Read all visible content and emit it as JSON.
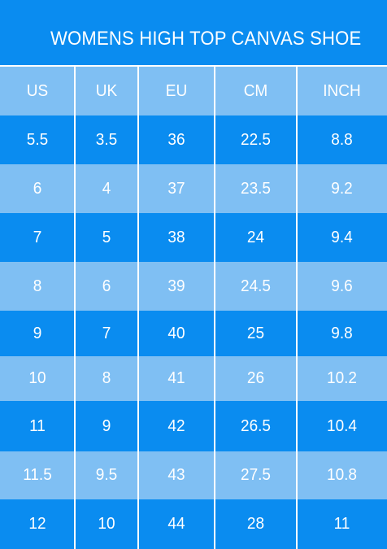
{
  "title": "WOMENS HIGH TOP CANVAS SHOE",
  "colors": {
    "dark_row": "#0a8cf0",
    "light_row": "#7fbff3",
    "text": "#ffffff"
  },
  "headers": [
    "US",
    "UK",
    "EU",
    "CM",
    "INCH"
  ],
  "rows": [
    [
      "5.5",
      "3.5",
      "36",
      "22.5",
      "8.8"
    ],
    [
      "6",
      "4",
      "37",
      "23.5",
      "9.2"
    ],
    [
      "7",
      "5",
      "38",
      "24",
      "9.4"
    ],
    [
      "8",
      "6",
      "39",
      "24.5",
      "9.6"
    ],
    [
      "9",
      "7",
      "40",
      "25",
      "9.8"
    ],
    [
      "10",
      "8",
      "41",
      "26",
      "10.2"
    ],
    [
      "11",
      "9",
      "42",
      "26.5",
      "10.4"
    ],
    [
      "11.5",
      "9.5",
      "43",
      "27.5",
      "10.8"
    ],
    [
      "12",
      "10",
      "44",
      "28",
      "11"
    ]
  ]
}
